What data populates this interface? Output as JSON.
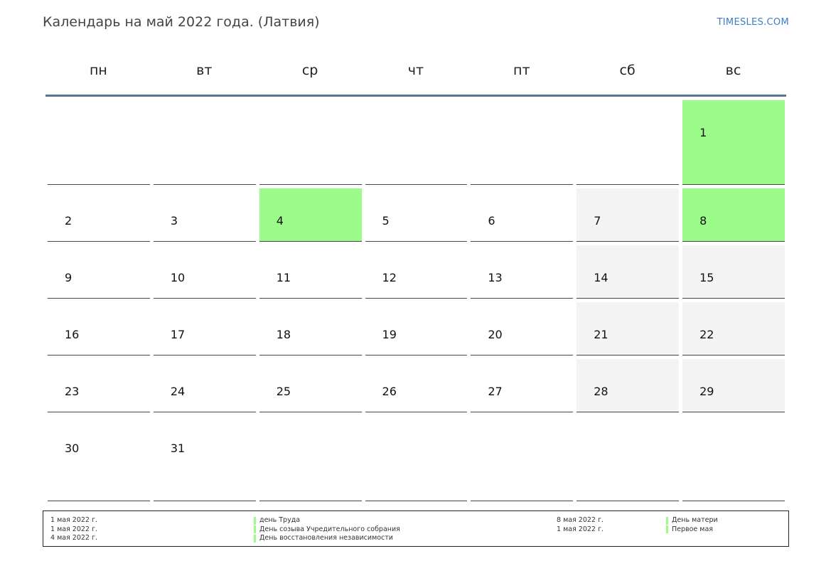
{
  "header": {
    "title": "Календарь на май 2022 года. (Латвия)",
    "site": "TIMESLES.COM"
  },
  "colors": {
    "holiday": "#9cfc8a",
    "weekend": "#f4f4f4",
    "header_rule": "#5b7396",
    "site_link": "#3b7fc4"
  },
  "weekdays": [
    "пн",
    "вт",
    "ср",
    "чт",
    "пт",
    "сб",
    "вс"
  ],
  "weeks": [
    [
      {
        "d": ""
      },
      {
        "d": ""
      },
      {
        "d": ""
      },
      {
        "d": ""
      },
      {
        "d": ""
      },
      {
        "d": ""
      },
      {
        "d": "1",
        "holiday": true
      }
    ],
    [
      {
        "d": "2"
      },
      {
        "d": "3"
      },
      {
        "d": "4",
        "holiday": true
      },
      {
        "d": "5"
      },
      {
        "d": "6"
      },
      {
        "d": "7",
        "weekend": true
      },
      {
        "d": "8",
        "holiday": true
      }
    ],
    [
      {
        "d": "9"
      },
      {
        "d": "10"
      },
      {
        "d": "11"
      },
      {
        "d": "12"
      },
      {
        "d": "13"
      },
      {
        "d": "14",
        "weekend": true
      },
      {
        "d": "15",
        "weekend": true
      }
    ],
    [
      {
        "d": "16"
      },
      {
        "d": "17"
      },
      {
        "d": "18"
      },
      {
        "d": "19"
      },
      {
        "d": "20"
      },
      {
        "d": "21",
        "weekend": true
      },
      {
        "d": "22",
        "weekend": true
      }
    ],
    [
      {
        "d": "23"
      },
      {
        "d": "24"
      },
      {
        "d": "25"
      },
      {
        "d": "26"
      },
      {
        "d": "27"
      },
      {
        "d": "28",
        "weekend": true
      },
      {
        "d": "29",
        "weekend": true
      }
    ],
    [
      {
        "d": "30"
      },
      {
        "d": "31"
      },
      {
        "d": ""
      },
      {
        "d": ""
      },
      {
        "d": ""
      },
      {
        "d": ""
      },
      {
        "d": ""
      }
    ]
  ],
  "legend": {
    "left": [
      {
        "date": "1 мая 2022 г.",
        "name": "день Труда"
      },
      {
        "date": "1 мая 2022 г.",
        "name": "День созыва Учредительного собрания"
      },
      {
        "date": "4 мая 2022 г.",
        "name": "День восстановления независимости"
      }
    ],
    "right": [
      {
        "date": "8 мая 2022 г.",
        "name": "День матери"
      },
      {
        "date": "1 мая 2022 г.",
        "name": "Первое мая"
      }
    ]
  }
}
